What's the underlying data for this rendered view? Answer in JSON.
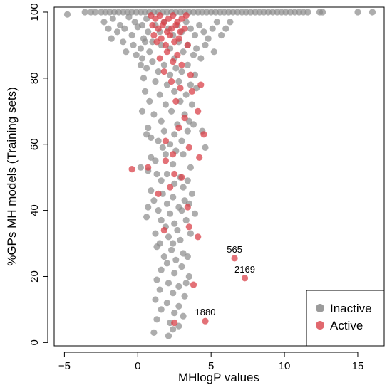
{
  "chart_data": {
    "type": "scatter",
    "title": "",
    "xlabel": "MHlogP values",
    "ylabel": "%GPs MH models (Training sets)",
    "xlim": [
      -5.7,
      16.8
    ],
    "ylim": [
      -1,
      101.5
    ],
    "xticks": [
      -5,
      0,
      5,
      10,
      15
    ],
    "yticks": [
      0,
      20,
      40,
      60,
      80,
      100
    ],
    "grid": false,
    "legend": {
      "placement": "bottom-right",
      "entries": [
        "Inactive",
        "Active"
      ]
    },
    "colors": {
      "Inactive": "#8a8a8a",
      "Active": "#d9424a"
    },
    "series": [
      {
        "name": "Inactive",
        "points": [
          [
            -4.8,
            99.3
          ],
          [
            -3.6,
            100
          ],
          [
            -3.2,
            100
          ],
          [
            -2.9,
            100
          ],
          [
            -2.5,
            100
          ],
          [
            -2.2,
            100
          ],
          [
            -1.9,
            100
          ],
          [
            -1.6,
            100
          ],
          [
            -1.3,
            100
          ],
          [
            -1.0,
            100
          ],
          [
            -0.7,
            100
          ],
          [
            -0.4,
            100
          ],
          [
            -0.1,
            100
          ],
          [
            0.2,
            100
          ],
          [
            0.5,
            100
          ],
          [
            0.8,
            100
          ],
          [
            1.1,
            100
          ],
          [
            1.4,
            100
          ],
          [
            1.7,
            100
          ],
          [
            2.0,
            100
          ],
          [
            2.3,
            100
          ],
          [
            2.6,
            100
          ],
          [
            2.9,
            100
          ],
          [
            3.2,
            100
          ],
          [
            3.5,
            100
          ],
          [
            3.8,
            100
          ],
          [
            4.1,
            100
          ],
          [
            4.4,
            100
          ],
          [
            4.7,
            100
          ],
          [
            5.0,
            100
          ],
          [
            5.3,
            100
          ],
          [
            5.6,
            100
          ],
          [
            5.9,
            100
          ],
          [
            6.2,
            100
          ],
          [
            6.5,
            100
          ],
          [
            6.8,
            100
          ],
          [
            7.1,
            100
          ],
          [
            7.4,
            100
          ],
          [
            7.7,
            100
          ],
          [
            8.0,
            100
          ],
          [
            8.3,
            100
          ],
          [
            8.6,
            100
          ],
          [
            8.9,
            100
          ],
          [
            9.2,
            100
          ],
          [
            9.5,
            100
          ],
          [
            9.8,
            100
          ],
          [
            10.1,
            100
          ],
          [
            10.4,
            100
          ],
          [
            10.7,
            100
          ],
          [
            11.0,
            100
          ],
          [
            11.3,
            100
          ],
          [
            11.6,
            100
          ],
          [
            12.4,
            100
          ],
          [
            12.6,
            100
          ],
          [
            15.0,
            100
          ],
          [
            16.0,
            100
          ],
          [
            -2.3,
            97
          ],
          [
            -1.7,
            98
          ],
          [
            -1.2,
            96
          ],
          [
            -0.6,
            98.5
          ],
          [
            -0.2,
            97
          ],
          [
            0.3,
            96
          ],
          [
            0.6,
            98
          ],
          [
            -2.0,
            95
          ],
          [
            -1.4,
            94
          ],
          [
            -0.9,
            95
          ],
          [
            -0.4,
            93
          ],
          [
            0.0,
            95.5
          ],
          [
            0.4,
            92
          ],
          [
            0.7,
            94
          ],
          [
            -1.8,
            92
          ],
          [
            -1.0,
            91
          ],
          [
            -0.3,
            90
          ],
          [
            0.2,
            89
          ],
          [
            0.5,
            91
          ],
          [
            -0.8,
            88
          ],
          [
            -0.1,
            87
          ],
          [
            0.3,
            86
          ],
          [
            0.8,
            88
          ],
          [
            1.2,
            96
          ],
          [
            1.5,
            94
          ],
          [
            1.8,
            97
          ],
          [
            2.1,
            95
          ],
          [
            2.4,
            93
          ],
          [
            2.7,
            96
          ],
          [
            3.0,
            94
          ],
          [
            3.3,
            97
          ],
          [
            3.6,
            95
          ],
          [
            3.9,
            93
          ],
          [
            4.2,
            96
          ],
          [
            4.5,
            94
          ],
          [
            4.8,
            92
          ],
          [
            5.1,
            95
          ],
          [
            5.4,
            97
          ],
          [
            5.7,
            93
          ],
          [
            6.0,
            95
          ],
          [
            6.3,
            97
          ],
          [
            1.0,
            91
          ],
          [
            1.6,
            90
          ],
          [
            2.2,
            89
          ],
          [
            2.8,
            91
          ],
          [
            3.4,
            90
          ],
          [
            4.0,
            89
          ],
          [
            4.6,
            90
          ],
          [
            5.2,
            88
          ],
          [
            3.1,
            88
          ],
          [
            3.8,
            87
          ],
          [
            4.3,
            86
          ],
          [
            2.5,
            86
          ],
          [
            0.2,
            84
          ],
          [
            0.6,
            83
          ],
          [
            1.0,
            85
          ],
          [
            1.4,
            82
          ],
          [
            1.8,
            84
          ],
          [
            2.2,
            81
          ],
          [
            2.6,
            83
          ],
          [
            3.0,
            82
          ],
          [
            3.4,
            84
          ],
          [
            3.9,
            81
          ],
          [
            0.4,
            80
          ],
          [
            1.2,
            79
          ],
          [
            2.0,
            78
          ],
          [
            2.8,
            79
          ],
          [
            3.6,
            78
          ],
          [
            0.5,
            76
          ],
          [
            1.5,
            75
          ],
          [
            2.5,
            76
          ],
          [
            3.3,
            75
          ],
          [
            4.0,
            77
          ],
          [
            0.8,
            73
          ],
          [
            1.9,
            72
          ],
          [
            2.9,
            73
          ],
          [
            3.7,
            72
          ],
          [
            0.3,
            70
          ],
          [
            1.1,
            69
          ],
          [
            2.3,
            70
          ],
          [
            3.2,
            69
          ],
          [
            1.6,
            67
          ],
          [
            2.7,
            66
          ],
          [
            3.5,
            67
          ],
          [
            0.7,
            65
          ],
          [
            1.8,
            64
          ],
          [
            2.5,
            63
          ],
          [
            3.4,
            64
          ],
          [
            3.8,
            66
          ],
          [
            0.6,
            63
          ],
          [
            0.9,
            62
          ],
          [
            1.4,
            61
          ],
          [
            2.2,
            60
          ],
          [
            3.0,
            61
          ],
          [
            4.4,
            64
          ],
          [
            1.7,
            59
          ],
          [
            2.6,
            58
          ],
          [
            0.9,
            56
          ],
          [
            1.9,
            57
          ],
          [
            3.1,
            57
          ],
          [
            4.6,
            59
          ],
          [
            1.2,
            55
          ],
          [
            2.4,
            54
          ],
          [
            3.6,
            53
          ],
          [
            0.2,
            53
          ],
          [
            0.7,
            52
          ],
          [
            1.3,
            51
          ],
          [
            2.0,
            51
          ],
          [
            2.9,
            50
          ],
          [
            3.4,
            49
          ],
          [
            1.6,
            49
          ],
          [
            2.5,
            48
          ],
          [
            3.1,
            47
          ],
          [
            0.9,
            46
          ],
          [
            1.7,
            45
          ],
          [
            2.4,
            44
          ],
          [
            3.2,
            43
          ],
          [
            3.7,
            45
          ],
          [
            1.1,
            43
          ],
          [
            2.0,
            42
          ],
          [
            2.8,
            41
          ],
          [
            3.5,
            42
          ],
          [
            0.7,
            41
          ],
          [
            1.4,
            40
          ],
          [
            2.2,
            39
          ],
          [
            3.0,
            40
          ],
          [
            3.9,
            39
          ],
          [
            0.6,
            38
          ],
          [
            1.6,
            37
          ],
          [
            2.5,
            36
          ],
          [
            3.3,
            37
          ],
          [
            1.9,
            35
          ],
          [
            2.7,
            34
          ],
          [
            1.2,
            33
          ],
          [
            2.1,
            32
          ],
          [
            2.9,
            31
          ],
          [
            3.6,
            33
          ],
          [
            1.5,
            30
          ],
          [
            2.4,
            30
          ],
          [
            1.3,
            29
          ],
          [
            2.3,
            28
          ],
          [
            3.1,
            27
          ],
          [
            1.8,
            26
          ],
          [
            2.6,
            25
          ],
          [
            3.4,
            26
          ],
          [
            2.0,
            24
          ],
          [
            3.0,
            23
          ],
          [
            1.6,
            22
          ],
          [
            2.5,
            21
          ],
          [
            3.5,
            20
          ],
          [
            1.3,
            19
          ],
          [
            2.1,
            18
          ],
          [
            2.8,
            17
          ],
          [
            3.3,
            18
          ],
          [
            1.5,
            16
          ],
          [
            2.4,
            15
          ],
          [
            3.2,
            14
          ],
          [
            1.2,
            13
          ],
          [
            2.0,
            12
          ],
          [
            2.8,
            11
          ],
          [
            1.6,
            10
          ],
          [
            2.5,
            9
          ],
          [
            3.1,
            8
          ],
          [
            1.3,
            7
          ],
          [
            2.2,
            6
          ],
          [
            2.8,
            5
          ],
          [
            2.4,
            4
          ],
          [
            1.1,
            3
          ],
          [
            2.1,
            2
          ]
        ]
      },
      {
        "name": "Active",
        "points": [
          [
            0.9,
            99
          ],
          [
            1.2,
            98
          ],
          [
            1.5,
            99
          ],
          [
            1.8,
            97
          ],
          [
            2.1,
            98
          ],
          [
            2.4,
            99
          ],
          [
            2.7,
            97
          ],
          [
            3.0,
            98
          ],
          [
            3.3,
            99
          ],
          [
            1.0,
            96
          ],
          [
            1.4,
            95
          ],
          [
            1.7,
            96
          ],
          [
            2.0,
            94
          ],
          [
            2.3,
            95
          ],
          [
            2.6,
            96
          ],
          [
            2.9,
            94
          ],
          [
            3.2,
            95
          ],
          [
            1.1,
            93
          ],
          [
            1.6,
            92
          ],
          [
            2.2,
            93
          ],
          [
            2.8,
            92
          ],
          [
            1.3,
            91
          ],
          [
            1.9,
            90
          ],
          [
            2.5,
            91
          ],
          [
            3.4,
            90
          ],
          [
            2.0,
            88
          ],
          [
            2.7,
            87
          ],
          [
            1.5,
            86
          ],
          [
            2.4,
            85
          ],
          [
            3.0,
            84
          ],
          [
            1.8,
            82
          ],
          [
            3.6,
            81
          ],
          [
            2.3,
            79
          ],
          [
            4.3,
            78
          ],
          [
            2.9,
            77
          ],
          [
            3.7,
            76
          ],
          [
            2.6,
            73
          ],
          [
            4.1,
            70
          ],
          [
            3.2,
            68
          ],
          [
            2.8,
            65
          ],
          [
            4.5,
            63
          ],
          [
            1.9,
            61
          ],
          [
            3.5,
            59
          ],
          [
            2.4,
            57
          ],
          [
            4.2,
            56
          ],
          [
            1.9,
            55
          ],
          [
            -0.4,
            52.5
          ],
          [
            0.7,
            53
          ],
          [
            2.5,
            51
          ],
          [
            3.0,
            50
          ],
          [
            2.2,
            47
          ],
          [
            1.4,
            45
          ],
          [
            3.4,
            41
          ],
          [
            3.5,
            35
          ],
          [
            1.8,
            34
          ],
          [
            4.1,
            32
          ],
          [
            3.8,
            17.5
          ],
          [
            2.5,
            6
          ],
          [
            4.6,
            6.5
          ],
          [
            6.6,
            25.5
          ],
          [
            7.3,
            19.5
          ]
        ]
      }
    ],
    "annotations": [
      {
        "text": "565",
        "x": 6.6,
        "y": 25.5
      },
      {
        "text": "2169",
        "x": 7.3,
        "y": 19.5
      },
      {
        "text": "1880",
        "x": 4.6,
        "y": 6.5
      }
    ]
  }
}
